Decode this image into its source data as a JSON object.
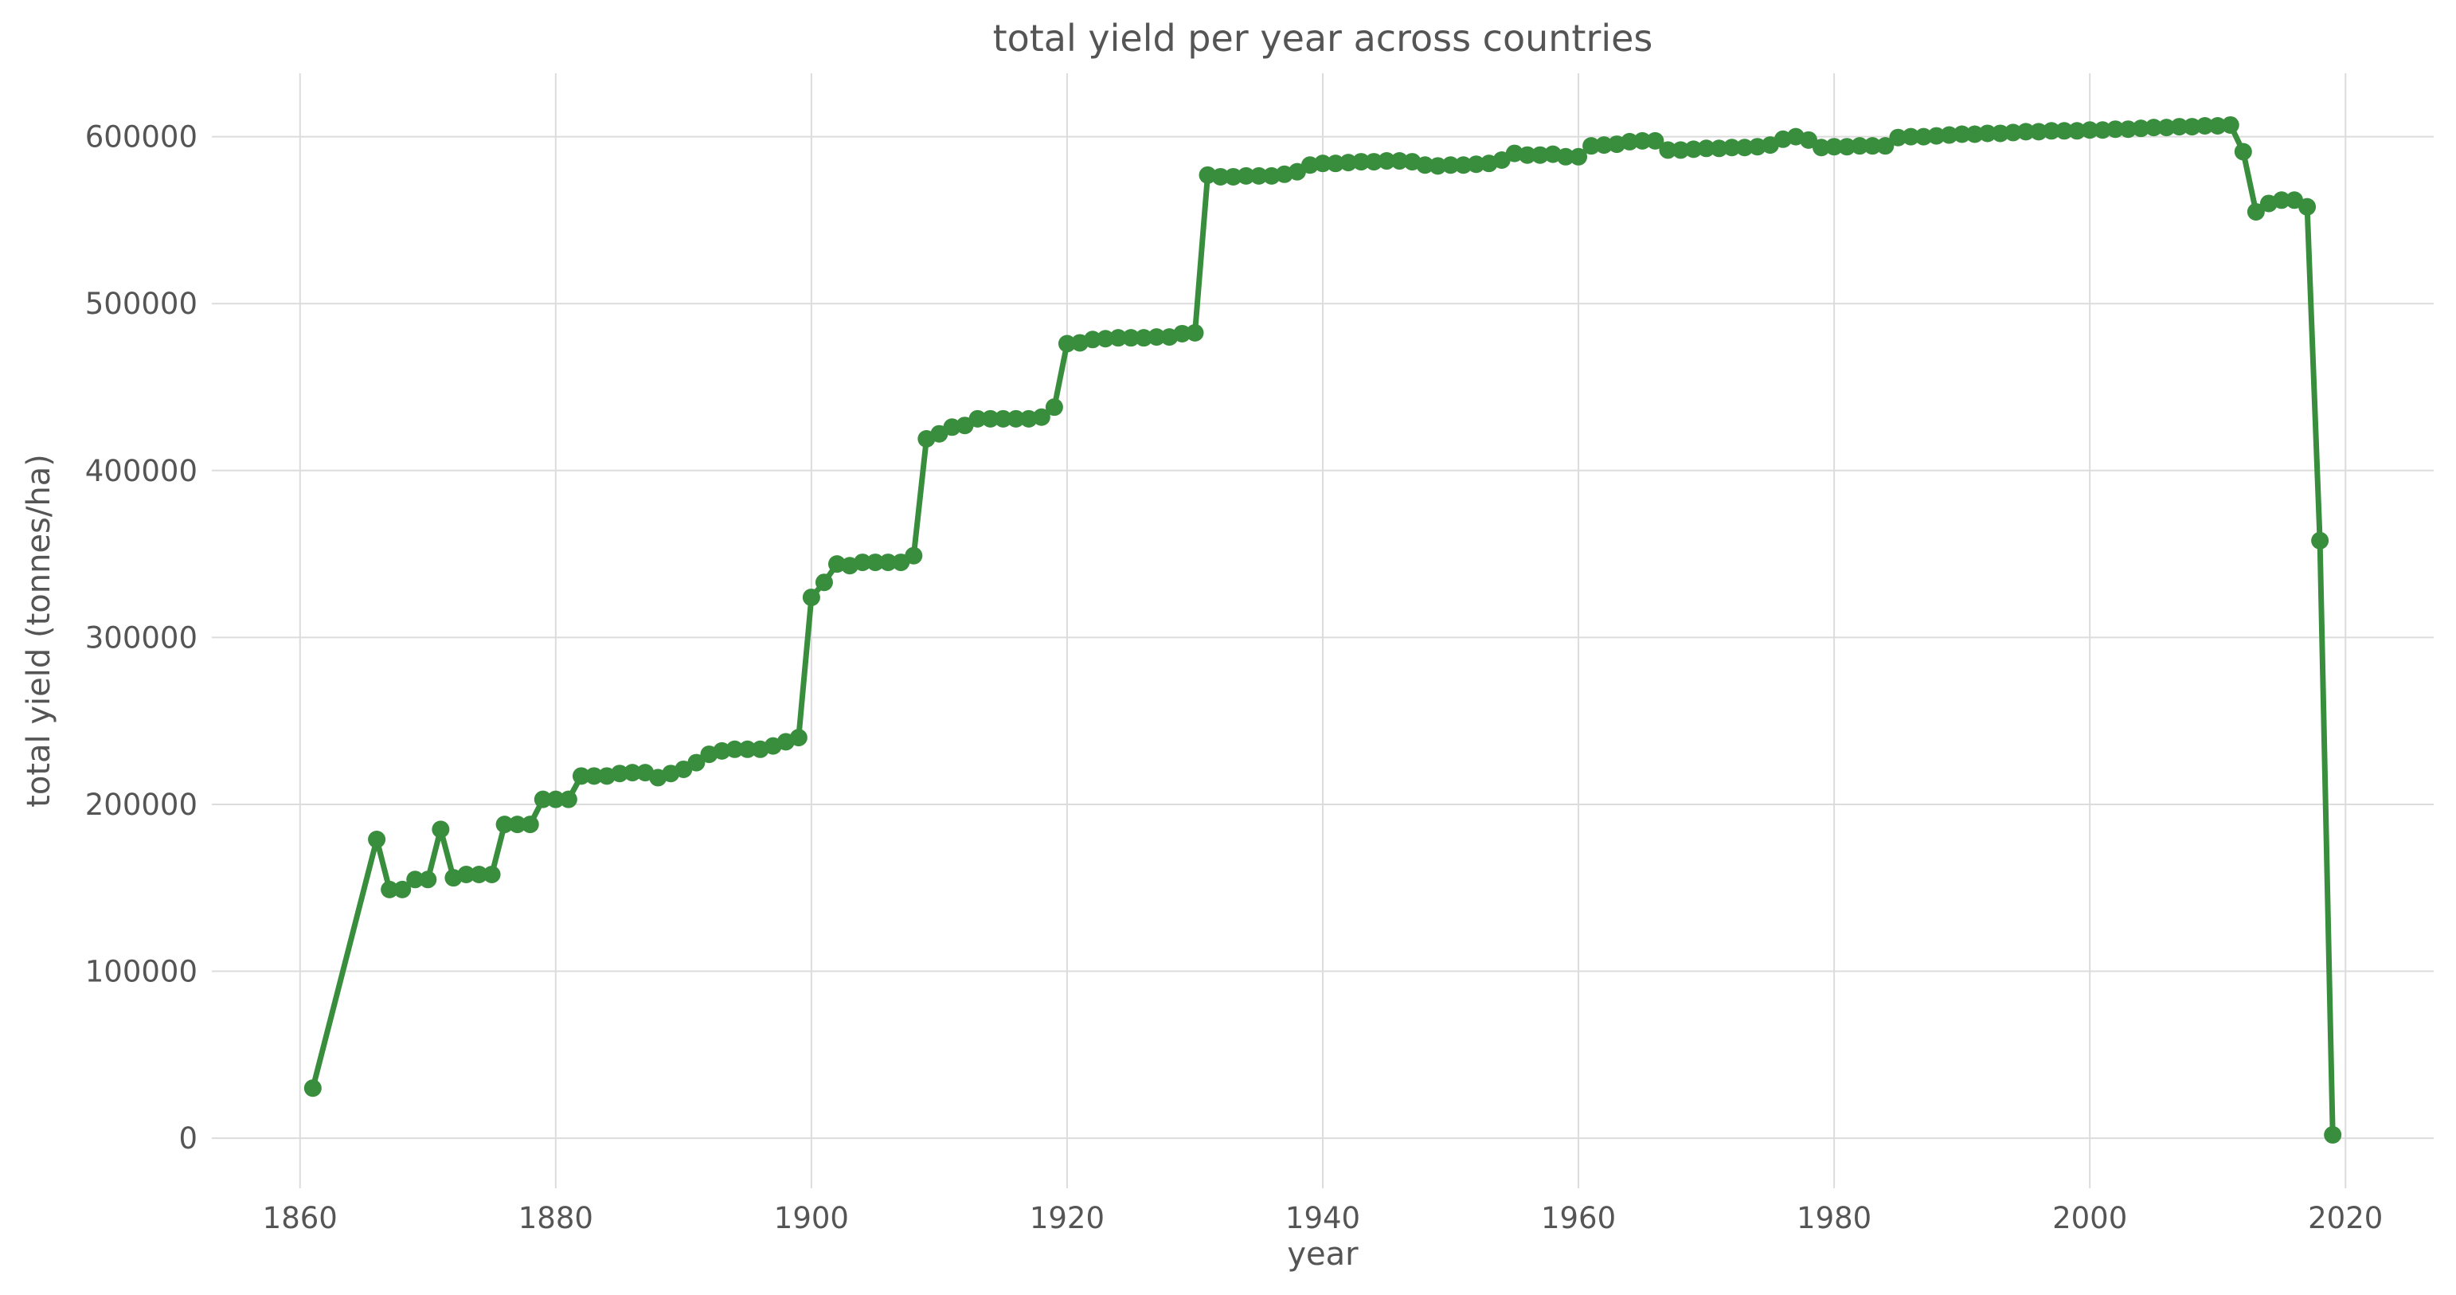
{
  "chart_data": {
    "type": "line",
    "title": "total yield per year across countries",
    "xlabel": "year",
    "ylabel": "total yield (tonnes/ha)",
    "xlim": [
      1853.1,
      2026.9
    ],
    "ylim": [
      -30000,
      638000
    ],
    "xticks": [
      1860,
      1880,
      1900,
      1920,
      1940,
      1960,
      1980,
      2000,
      2020
    ],
    "yticks": [
      0,
      100000,
      200000,
      300000,
      400000,
      500000,
      600000
    ],
    "grid": true,
    "color": "#388e3c",
    "series": [
      {
        "x": [
          1861,
          1866,
          1867,
          1868,
          1869,
          1870,
          1871,
          1872,
          1873,
          1874,
          1875,
          1876,
          1877,
          1878,
          1879,
          1880,
          1881,
          1882,
          1883,
          1884,
          1885,
          1886,
          1887,
          1888,
          1889,
          1890,
          1891,
          1892,
          1893,
          1894,
          1895,
          1896,
          1897,
          1898,
          1899,
          1900,
          1901,
          1902,
          1903,
          1904,
          1905,
          1906,
          1907,
          1908,
          1909,
          1910,
          1911,
          1912,
          1913,
          1914,
          1915,
          1916,
          1917,
          1918,
          1919,
          1920,
          1921,
          1922,
          1923,
          1924,
          1925,
          1926,
          1927,
          1928,
          1929,
          1930,
          1931,
          1932,
          1933,
          1934,
          1935,
          1936,
          1937,
          1938,
          1939,
          1940,
          1941,
          1942,
          1943,
          1944,
          1945,
          1946,
          1947,
          1948,
          1949,
          1950,
          1951,
          1952,
          1953,
          1954,
          1955,
          1956,
          1957,
          1958,
          1959,
          1960,
          1961,
          1962,
          1963,
          1964,
          1965,
          1966,
          1967,
          1968,
          1969,
          1970,
          1971,
          1972,
          1973,
          1974,
          1975,
          1976,
          1977,
          1978,
          1979,
          1980,
          1981,
          1982,
          1983,
          1984,
          1985,
          1986,
          1987,
          1988,
          1989,
          1990,
          1991,
          1992,
          1993,
          1994,
          1995,
          1996,
          1997,
          1998,
          1999,
          2000,
          2001,
          2002,
          2003,
          2004,
          2005,
          2006,
          2007,
          2008,
          2009,
          2010,
          2011,
          2012,
          2013,
          2014,
          2015,
          2016,
          2017,
          2018,
          2019
        ],
        "y": [
          30000,
          179000,
          149000,
          149000,
          155000,
          155000,
          185000,
          156000,
          158000,
          158000,
          158000,
          188000,
          188000,
          188000,
          203000,
          203000,
          203000,
          217000,
          217000,
          217000,
          218500,
          219000,
          219000,
          216000,
          218500,
          221000,
          225000,
          230000,
          232000,
          233000,
          233000,
          233000,
          235000,
          237500,
          240000,
          324000,
          333000,
          344000,
          343000,
          345000,
          345000,
          345000,
          345000,
          349000,
          419000,
          422000,
          426000,
          427000,
          431000,
          431000,
          431000,
          431000,
          431000,
          432000,
          438000,
          476000,
          476500,
          478500,
          479000,
          479500,
          479500,
          479500,
          480000,
          480000,
          482000,
          482500,
          577000,
          576000,
          576000,
          576500,
          576500,
          576500,
          577500,
          579000,
          583000,
          584000,
          584000,
          584500,
          585000,
          585000,
          585500,
          585500,
          585000,
          583000,
          582500,
          583000,
          583000,
          583500,
          584000,
          586000,
          590000,
          589000,
          589000,
          589500,
          588000,
          588000,
          594500,
          595000,
          595500,
          597000,
          597500,
          597500,
          592000,
          592000,
          592500,
          593000,
          593000,
          593500,
          593500,
          594000,
          595000,
          598500,
          600000,
          598000,
          593500,
          594000,
          594000,
          594500,
          594500,
          594500,
          599500,
          600000,
          600000,
          600500,
          601000,
          601500,
          601500,
          602000,
          602000,
          602500,
          603000,
          603000,
          603500,
          603500,
          603500,
          604000,
          604000,
          604500,
          604500,
          605000,
          605500,
          605500,
          606000,
          606000,
          606500,
          606500,
          607000,
          591000,
          555000,
          560000,
          562000,
          562000,
          558000,
          358000,
          2000
        ]
      }
    ]
  }
}
